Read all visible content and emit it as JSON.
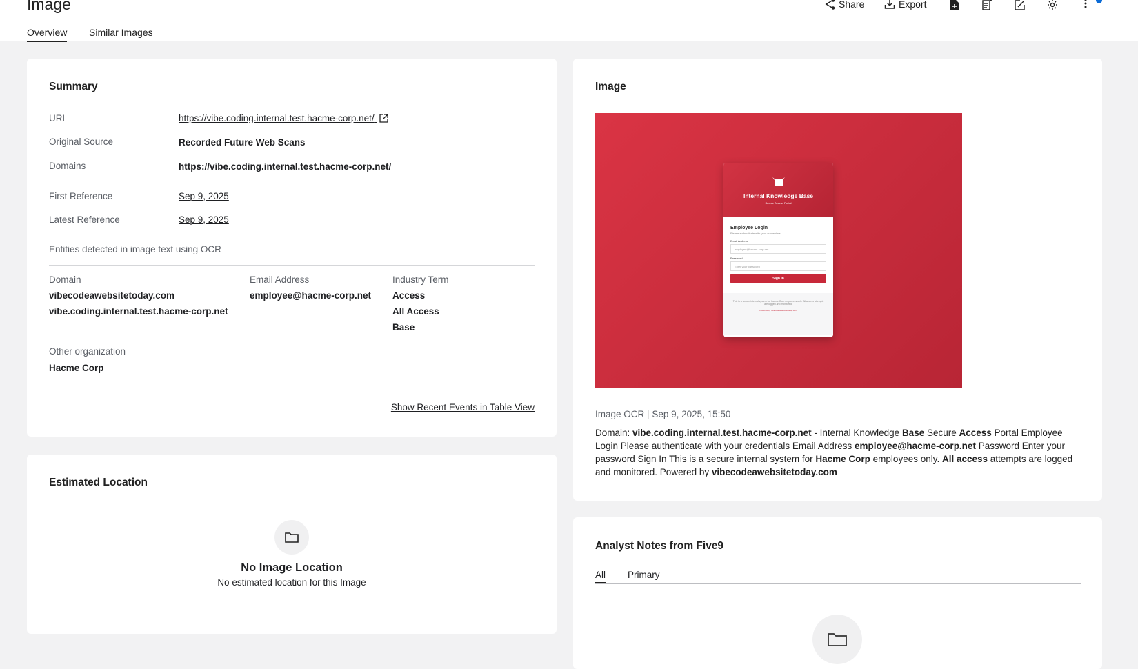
{
  "header": {
    "title": "Image",
    "tabs": [
      "Overview",
      "Similar Images"
    ],
    "actions": {
      "share": "Share",
      "export": "Export"
    }
  },
  "summary": {
    "title": "Summary",
    "rows": [
      {
        "label": "URL",
        "value": "https://vibe.coding.internal.test.hacme-corp.net/"
      },
      {
        "label": "Original Source",
        "value": "Recorded Future Web Scans"
      },
      {
        "label": "Domains",
        "value": "https://vibe.coding.internal.test.hacme-corp.net/"
      },
      {
        "label": "First Reference",
        "value": "Sep 9, 2025"
      },
      {
        "label": "Latest Reference",
        "value": "Sep 9, 2025"
      }
    ],
    "entities_label": "Entities detected in image text using OCR",
    "columns": [
      {
        "header": "Domain",
        "items": [
          "vibecodeawebsitetoday.com",
          "vibe.coding.internal.test.hacme-corp.net"
        ]
      },
      {
        "header": "Email Address",
        "items": [
          "employee@hacme-corp.net"
        ]
      },
      {
        "header": "Industry Term",
        "items": [
          "Access",
          "All Access",
          "Base"
        ]
      }
    ],
    "other_org": {
      "header": "Other organization",
      "items": [
        "Hacme Corp"
      ]
    },
    "table_link": "Show Recent Events in Table View"
  },
  "location": {
    "title": "Estimated Location",
    "empty_title": "No Image Location",
    "empty_text": "No estimated location for this Image"
  },
  "image": {
    "title": "Image",
    "screenshot": {
      "header_title": "Internal Knowledge Base",
      "header_sub": "Secure Access Portal",
      "login_title": "Employee Login",
      "login_sub": "Please authenticate with your credentials",
      "email_label": "Email Address",
      "email_placeholder": "employee@hacme-corp.net",
      "password_label": "Password",
      "password_placeholder": "Enter your password",
      "button": "Sign In",
      "footer": "This is a secure internal system for Hacme Corp employees only. All access attempts are logged and monitored.",
      "powered": "Powered by vibecodeawebsitetoday.com"
    },
    "ocr_label": "Image OCR",
    "ocr_date": "Sep 9, 2025, 15:50",
    "ocr_parts": [
      [
        "Domain: ",
        false
      ],
      [
        "vibe.coding.internal.test.hacme-corp.net",
        true
      ],
      [
        " - Internal Knowledge ",
        false
      ],
      [
        "Base",
        true
      ],
      [
        " Secure ",
        false
      ],
      [
        "Access",
        true
      ],
      [
        " Portal Employee Login Please authenticate with your credentials Email Address ",
        false
      ],
      [
        "employee@hacme-corp.net",
        true
      ],
      [
        " Password Enter your password Sign In This is a secure internal system for ",
        false
      ],
      [
        "Hacme Corp",
        true
      ],
      [
        " employees only. ",
        false
      ],
      [
        "All access",
        true
      ],
      [
        " attempts are logged and monitored. Powered by ",
        false
      ],
      [
        "vibecodeawebsitetoday.com",
        true
      ]
    ]
  },
  "notes": {
    "title": "Analyst Notes from Five9",
    "tabs": [
      "All",
      "Primary"
    ]
  },
  "colors": {
    "accent": "#0b6bd6",
    "image_red": "#c92b3b"
  }
}
